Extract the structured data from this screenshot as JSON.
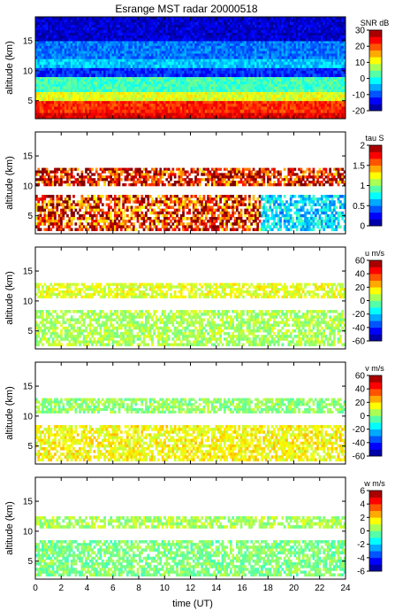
{
  "title": "Esrange MST radar 20000518",
  "xlabel": "time (UT)",
  "chart_data": [
    {
      "type": "heatmap",
      "ylabel": "altitude (km)",
      "xlim": [
        0,
        24
      ],
      "ylim": [
        2,
        19
      ],
      "x_ticks": [
        0,
        2,
        4,
        6,
        8,
        10,
        12,
        14,
        16,
        18,
        20,
        22,
        24
      ],
      "y_ticks": [
        5,
        10,
        15
      ],
      "colorbar": {
        "label": "SNR dB",
        "range": [
          -20,
          30
        ],
        "ticks": [
          -20,
          -10,
          0,
          10,
          20,
          30
        ]
      },
      "layers": [
        {
          "alt": [
            2,
            3
          ],
          "value": 25
        },
        {
          "alt": [
            3,
            5
          ],
          "value": 22
        },
        {
          "alt": [
            5,
            6.5
          ],
          "value": 10
        },
        {
          "alt": [
            6.5,
            9
          ],
          "value": 2
        },
        {
          "alt": [
            9,
            10.5
          ],
          "value": -12
        },
        {
          "alt": [
            10.5,
            12
          ],
          "value": -4
        },
        {
          "alt": [
            12,
            15
          ],
          "value": -8
        },
        {
          "alt": [
            15,
            19
          ],
          "value": -16
        }
      ]
    },
    {
      "type": "heatmap",
      "ylabel": "altitude (km)",
      "xlim": [
        0,
        24
      ],
      "ylim": [
        2,
        19
      ],
      "x_ticks": [
        0,
        2,
        4,
        6,
        8,
        10,
        12,
        14,
        16,
        18,
        20,
        22,
        24
      ],
      "y_ticks": [
        5,
        10,
        15
      ],
      "colorbar": {
        "label": "tau S",
        "range": [
          0,
          2
        ],
        "ticks": [
          0,
          0.5,
          1,
          1.5,
          2
        ]
      },
      "layers": [
        {
          "alt": [
            2.5,
            8.5
          ],
          "value": 1.7
        },
        {
          "alt": [
            10,
            13
          ],
          "value": 1.8
        }
      ]
    },
    {
      "type": "heatmap",
      "ylabel": "altitude (km)",
      "xlim": [
        0,
        24
      ],
      "ylim": [
        2,
        19
      ],
      "x_ticks": [
        0,
        2,
        4,
        6,
        8,
        10,
        12,
        14,
        16,
        18,
        20,
        22,
        24
      ],
      "y_ticks": [
        5,
        10,
        15
      ],
      "colorbar": {
        "label": "u m/s",
        "range": [
          -60,
          60
        ],
        "ticks": [
          -60,
          -40,
          -20,
          0,
          20,
          40,
          60
        ]
      },
      "layers": [
        {
          "alt": [
            2.5,
            8.5
          ],
          "value": 5
        },
        {
          "alt": [
            10.5,
            13
          ],
          "value": 12
        }
      ]
    },
    {
      "type": "heatmap",
      "ylabel": "altitude (km)",
      "xlim": [
        0,
        24
      ],
      "ylim": [
        2,
        19
      ],
      "x_ticks": [
        0,
        2,
        4,
        6,
        8,
        10,
        12,
        14,
        16,
        18,
        20,
        22,
        24
      ],
      "y_ticks": [
        5,
        10,
        15
      ],
      "colorbar": {
        "label": "v m/s",
        "range": [
          -60,
          60
        ],
        "ticks": [
          -60,
          -40,
          -20,
          0,
          20,
          40,
          60
        ]
      },
      "layers": [
        {
          "alt": [
            2.5,
            8.5
          ],
          "value": 15
        },
        {
          "alt": [
            10.5,
            13
          ],
          "value": 2
        }
      ]
    },
    {
      "type": "heatmap",
      "ylabel": "altitude (km)",
      "xlim": [
        0,
        24
      ],
      "ylim": [
        2,
        19
      ],
      "x_ticks": [
        0,
        2,
        4,
        6,
        8,
        10,
        12,
        14,
        16,
        18,
        20,
        22,
        24
      ],
      "y_ticks": [
        5,
        10,
        15
      ],
      "colorbar": {
        "label": "w m/s",
        "range": [
          -6,
          6
        ],
        "ticks": [
          -6,
          -4,
          -2,
          0,
          2,
          4,
          6
        ]
      },
      "layers": [
        {
          "alt": [
            2.5,
            8.5
          ],
          "value": 0
        },
        {
          "alt": [
            10.5,
            12.5
          ],
          "value": 0.5
        }
      ]
    }
  ]
}
